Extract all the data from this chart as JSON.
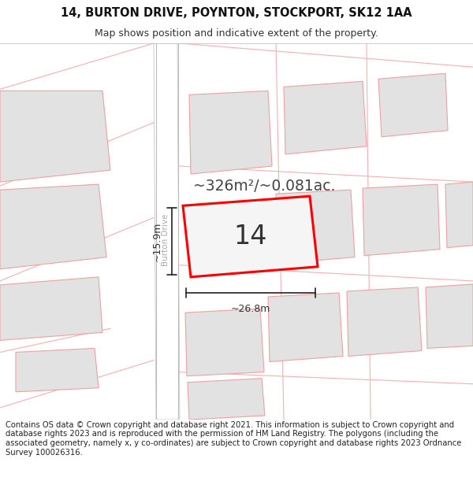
{
  "title_line1": "14, BURTON DRIVE, POYNTON, STOCKPORT, SK12 1AA",
  "title_line2": "Map shows position and indicative extent of the property.",
  "footer_text": "Contains OS data © Crown copyright and database right 2021. This information is subject to Crown copyright and database rights 2023 and is reproduced with the permission of HM Land Registry. The polygons (including the associated geometry, namely x, y co-ordinates) are subject to Crown copyright and database rights 2023 Ordnance Survey 100026316.",
  "bg_color": "#ffffff",
  "map_bg": "#f0f0f0",
  "street_label": "Burton Drive",
  "area_label": "~326m²/~0.081ac.",
  "number_label": "14",
  "width_label": "~26.8m",
  "height_label": "~15.9m",
  "title_fontsize": 10.5,
  "subtitle_fontsize": 9,
  "footer_fontsize": 7.2,
  "block_face": "#e2e2e2",
  "block_edge": "#f0a0a0",
  "road_face": "#ffffff",
  "road_edge": "#bbbbbb",
  "highlight_red": "#ff0000",
  "dim_line_color": "#222222",
  "street_color": "#aaaaaa",
  "text_color": "#333333",
  "area_text_color": "#444444",
  "pink_line": "#f5b0b0"
}
